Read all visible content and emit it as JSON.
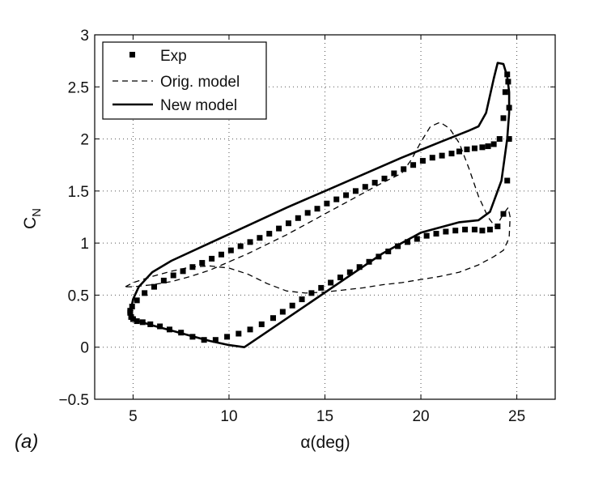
{
  "chart_data": {
    "type": "line",
    "xlabel": "α(deg)",
    "ylabel": "C",
    "ylabel_sub": "N",
    "panel_label": "(a)",
    "xlim": [
      3,
      27
    ],
    "ylim": [
      -0.5,
      3
    ],
    "xticks": [
      5,
      10,
      15,
      20,
      25
    ],
    "yticks": [
      -0.5,
      0,
      0.5,
      1,
      1.5,
      2,
      2.5,
      3
    ],
    "xtick_labels": [
      "5",
      "10",
      "15",
      "20",
      "25"
    ],
    "ytick_labels": [
      "−0.5",
      "0",
      "0.5",
      "1",
      "1.5",
      "2",
      "2.5",
      "3"
    ],
    "grid": true,
    "legend_position": "top-left",
    "series": [
      {
        "name": "Exp",
        "style": "square-markers",
        "color": "#000000",
        "x": [
          4.85,
          4.9,
          5.0,
          5.2,
          5.5,
          5.9,
          6.4,
          6.9,
          7.5,
          8.1,
          8.7,
          9.3,
          9.9,
          10.5,
          11.1,
          11.7,
          12.3,
          12.8,
          13.3,
          13.8,
          14.3,
          14.8,
          15.3,
          15.8,
          16.3,
          16.8,
          17.3,
          17.8,
          18.3,
          18.8,
          19.3,
          19.8,
          20.3,
          20.8,
          21.3,
          21.8,
          22.3,
          22.8,
          23.2,
          23.6,
          24.0,
          24.3,
          24.5,
          24.6,
          24.6,
          24.55,
          24.5,
          24.4,
          24.3,
          24.1,
          23.8,
          23.5,
          23.2,
          22.8,
          22.4,
          22.0,
          21.6,
          21.1,
          20.6,
          20.1,
          19.6,
          19.1,
          18.6,
          18.1,
          17.6,
          17.1,
          16.6,
          16.1,
          15.6,
          15.1,
          14.6,
          14.1,
          13.6,
          13.1,
          12.6,
          12.1,
          11.6,
          11.1,
          10.6,
          10.1,
          9.6,
          9.1,
          8.6,
          8.1,
          7.6,
          7.1,
          6.6,
          6.1,
          5.6,
          5.2,
          4.95,
          4.85
        ],
        "y": [
          0.33,
          0.29,
          0.27,
          0.25,
          0.24,
          0.22,
          0.2,
          0.17,
          0.14,
          0.1,
          0.07,
          0.07,
          0.1,
          0.13,
          0.17,
          0.22,
          0.28,
          0.34,
          0.4,
          0.46,
          0.52,
          0.57,
          0.62,
          0.67,
          0.72,
          0.77,
          0.82,
          0.87,
          0.92,
          0.97,
          1.01,
          1.04,
          1.07,
          1.09,
          1.11,
          1.12,
          1.13,
          1.13,
          1.12,
          1.13,
          1.16,
          1.28,
          1.6,
          2.0,
          2.3,
          2.55,
          2.62,
          2.45,
          2.2,
          2.0,
          1.95,
          1.93,
          1.92,
          1.91,
          1.9,
          1.88,
          1.86,
          1.84,
          1.82,
          1.79,
          1.75,
          1.71,
          1.67,
          1.62,
          1.58,
          1.54,
          1.5,
          1.46,
          1.42,
          1.38,
          1.33,
          1.29,
          1.24,
          1.19,
          1.14,
          1.09,
          1.05,
          1.01,
          0.97,
          0.93,
          0.89,
          0.85,
          0.81,
          0.77,
          0.73,
          0.69,
          0.64,
          0.58,
          0.52,
          0.45,
          0.39,
          0.35
        ]
      },
      {
        "name": "Orig. model",
        "style": "dashed",
        "color": "#000000",
        "x": [
          4.6,
          5.0,
          6.0,
          7.0,
          8.0,
          9.0,
          10.0,
          11.0,
          12.0,
          13.0,
          14.0,
          15.0,
          16.0,
          17.0,
          18.0,
          19.0,
          20.0,
          21.0,
          22.0,
          23.0,
          23.8,
          24.3,
          24.6,
          24.65,
          24.55,
          24.3,
          23.9,
          23.5,
          23.0,
          22.5,
          22.0,
          21.5,
          21.0,
          20.5,
          20.0,
          19.5,
          19.0,
          18.0,
          17.0,
          16.0,
          15.0,
          14.0,
          13.0,
          12.0,
          11.0,
          10.0,
          9.0,
          8.0,
          7.0,
          6.0,
          5.0,
          4.6
        ],
        "y": [
          0.58,
          0.62,
          0.68,
          0.73,
          0.77,
          0.78,
          0.76,
          0.7,
          0.61,
          0.54,
          0.52,
          0.53,
          0.55,
          0.57,
          0.6,
          0.62,
          0.65,
          0.68,
          0.72,
          0.79,
          0.87,
          0.93,
          1.05,
          1.25,
          1.34,
          1.28,
          1.15,
          1.25,
          1.45,
          1.72,
          1.96,
          2.1,
          2.16,
          2.12,
          1.97,
          1.8,
          1.67,
          1.58,
          1.48,
          1.38,
          1.28,
          1.18,
          1.08,
          0.99,
          0.9,
          0.82,
          0.74,
          0.68,
          0.63,
          0.6,
          0.58,
          0.58
        ]
      },
      {
        "name": "New model",
        "style": "solid",
        "color": "#000000",
        "x": [
          4.9,
          4.85,
          4.95,
          5.3,
          6.0,
          7.0,
          8.0,
          9.0,
          10.0,
          10.8,
          12.0,
          14.0,
          16.0,
          18.0,
          20.0,
          22.0,
          23.0,
          23.6,
          24.2,
          24.5,
          24.6,
          24.6,
          24.5,
          24.3,
          24.0,
          23.8,
          23.4,
          23.0,
          22.5,
          21.0,
          19.0,
          17.0,
          15.0,
          13.0,
          11.0,
          9.0,
          7.0,
          6.0,
          5.3,
          5.0,
          4.9
        ],
        "y": [
          0.37,
          0.32,
          0.28,
          0.25,
          0.21,
          0.16,
          0.11,
          0.06,
          0.02,
          0.0,
          0.15,
          0.4,
          0.65,
          0.9,
          1.1,
          1.2,
          1.22,
          1.3,
          1.6,
          2.0,
          2.25,
          2.45,
          2.6,
          2.72,
          2.73,
          2.58,
          2.25,
          2.12,
          2.08,
          1.97,
          1.82,
          1.66,
          1.5,
          1.34,
          1.17,
          1.0,
          0.83,
          0.72,
          0.58,
          0.46,
          0.37
        ]
      }
    ]
  }
}
